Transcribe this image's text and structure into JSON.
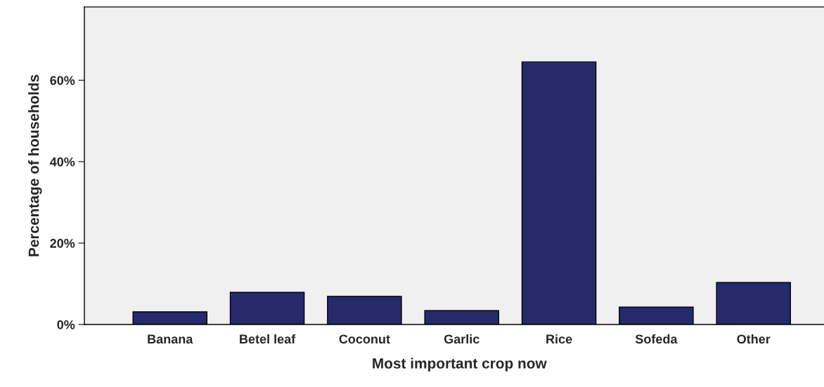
{
  "chart_data": {
    "type": "bar",
    "xlabel": "Most important crop now",
    "ylabel": "Percentage of households",
    "categories": [
      "Banana",
      "Betel leaf",
      "Coconut",
      "Garlic",
      "Rice",
      "Sofeda",
      "Other"
    ],
    "values": [
      3.1,
      7.9,
      6.9,
      3.4,
      64.5,
      4.3,
      10.3
    ],
    "color": "#262a6b",
    "ylim": [
      0,
      78
    ],
    "yticks": [
      {
        "value": 0,
        "label": "0%"
      },
      {
        "value": 20,
        "label": "20%"
      },
      {
        "value": 40,
        "label": "40%"
      },
      {
        "value": 60,
        "label": "60%"
      }
    ],
    "grid": false,
    "legend": false
  }
}
